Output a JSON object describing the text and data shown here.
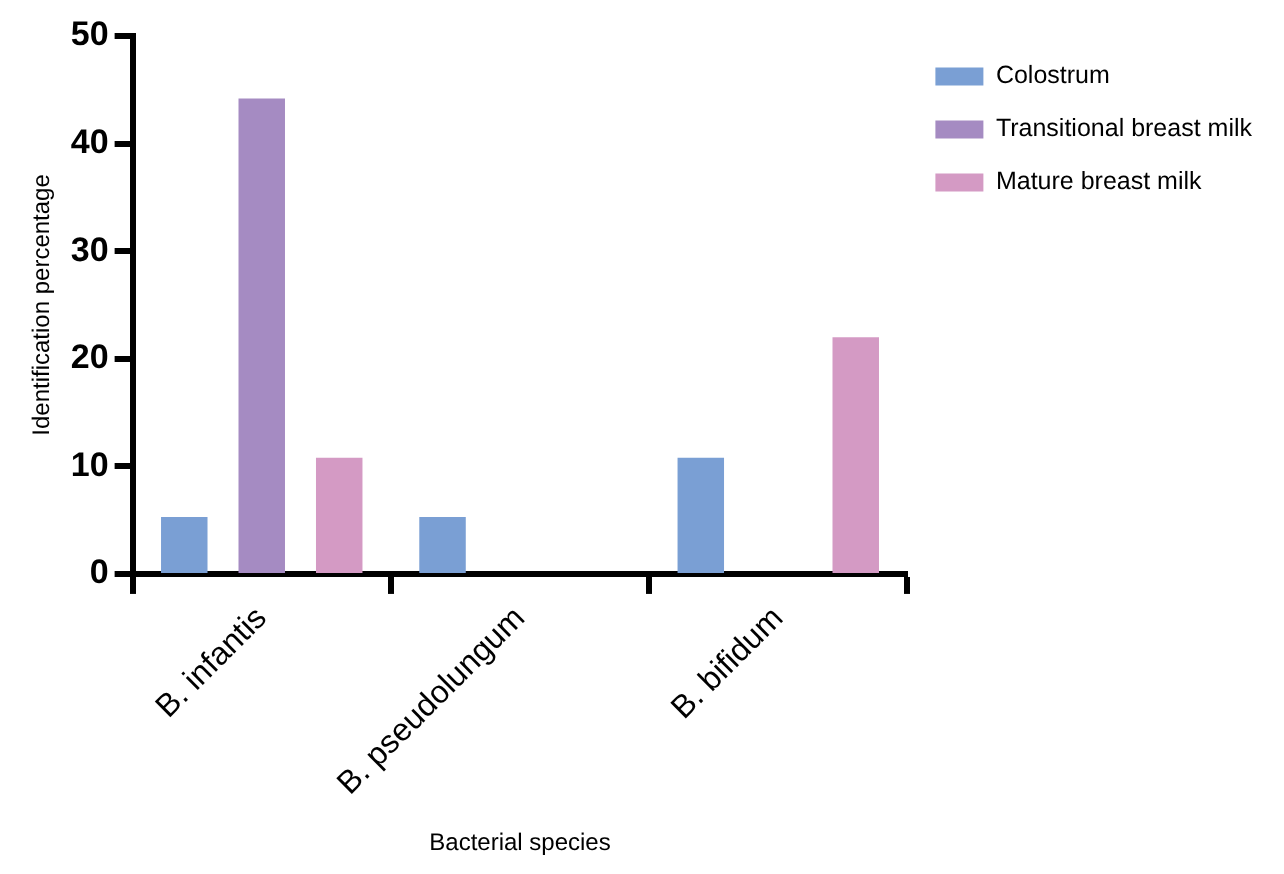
{
  "chart_data": {
    "type": "bar",
    "xlabel": "Bacterial species",
    "ylabel": "Identification percentage",
    "categories": [
      "B. infantis",
      "B. pseudolungum",
      "B. bifidum"
    ],
    "series": [
      {
        "name": "Colostrum",
        "color": "#7a9fd4",
        "values": [
          5.3,
          5.3,
          10.8
        ]
      },
      {
        "name": "Transitional breast milk",
        "color": "#a58bc2",
        "values": [
          44.2,
          0,
          0
        ]
      },
      {
        "name": "Mature breast milk",
        "color": "#d49ac4",
        "values": [
          10.8,
          0,
          22.0
        ]
      }
    ],
    "ylim": [
      0,
      50
    ],
    "yticks": [
      0,
      10,
      20,
      30,
      40,
      50
    ],
    "grid": false,
    "legend": "top right"
  }
}
